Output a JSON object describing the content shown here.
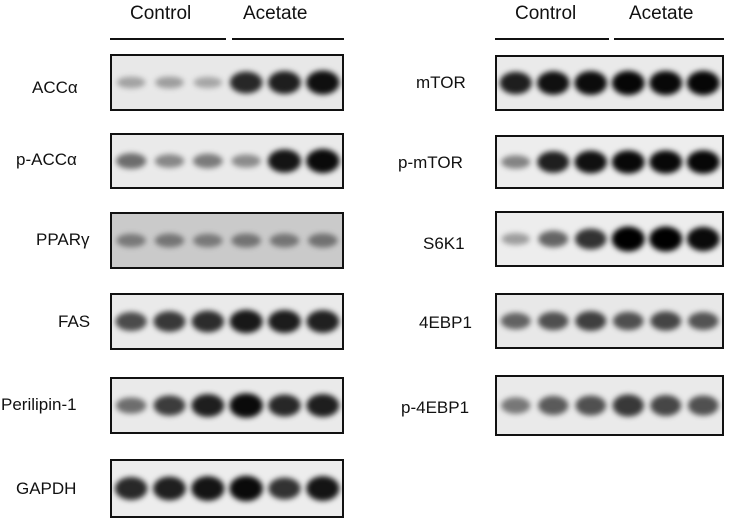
{
  "groups": {
    "control": "Control",
    "acetate": "Acetate"
  },
  "left_panel": {
    "rows": [
      {
        "label": "ACCα",
        "bands": [
          0.18,
          0.2,
          0.16,
          0.8,
          0.85,
          0.92
        ],
        "bg": 0.06
      },
      {
        "label": "p-ACCα",
        "bands": [
          0.45,
          0.32,
          0.38,
          0.3,
          0.9,
          0.95
        ],
        "bg": 0.05
      },
      {
        "label": "PPARγ",
        "bands": [
          0.3,
          0.32,
          0.3,
          0.33,
          0.32,
          0.34
        ],
        "bg": 0.18
      },
      {
        "label": "FAS",
        "bands": [
          0.62,
          0.72,
          0.78,
          0.88,
          0.86,
          0.84
        ],
        "bg": 0.05
      },
      {
        "label": "Perilipin-1",
        "bands": [
          0.45,
          0.7,
          0.85,
          0.95,
          0.8,
          0.85
        ],
        "bg": 0.05
      },
      {
        "label": "GAPDH",
        "bands": [
          0.8,
          0.85,
          0.9,
          0.95,
          0.75,
          0.9
        ],
        "bg": 0.04
      }
    ]
  },
  "right_panel": {
    "rows": [
      {
        "label": "mTOR",
        "bands": [
          0.85,
          0.92,
          0.94,
          0.97,
          0.96,
          0.97
        ],
        "bg": 0.05
      },
      {
        "label": "p-mTOR",
        "bands": [
          0.35,
          0.85,
          0.92,
          0.96,
          0.96,
          0.97
        ],
        "bg": 0.04
      },
      {
        "label": "S6K1",
        "bands": [
          0.22,
          0.5,
          0.75,
          1.0,
          1.0,
          0.95
        ],
        "bg": 0.04
      },
      {
        "label": "4EBP1",
        "bands": [
          0.5,
          0.6,
          0.68,
          0.6,
          0.65,
          0.58
        ],
        "bg": 0.06
      },
      {
        "label": "p-4EBP1",
        "bands": [
          0.4,
          0.55,
          0.6,
          0.72,
          0.65,
          0.6
        ],
        "bg": 0.05
      }
    ]
  }
}
